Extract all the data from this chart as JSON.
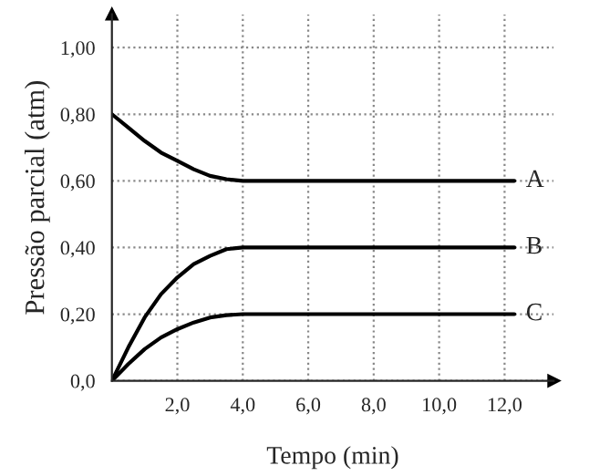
{
  "chart_data": {
    "type": "line",
    "xlabel": "Tempo (min)",
    "ylabel": "Pressão parcial (atm)",
    "xlim": [
      0,
      13.5
    ],
    "ylim": [
      0,
      1.1
    ],
    "xticks": [
      {
        "value": 2,
        "label": "2,0"
      },
      {
        "value": 4,
        "label": "4,0"
      },
      {
        "value": 6,
        "label": "6,0"
      },
      {
        "value": 8,
        "label": "8,0"
      },
      {
        "value": 10,
        "label": "10,0"
      },
      {
        "value": 12,
        "label": "12,0"
      }
    ],
    "yticks": [
      {
        "value": 0,
        "label": "0,0"
      },
      {
        "value": 0.2,
        "label": "0,20"
      },
      {
        "value": 0.4,
        "label": "0,40"
      },
      {
        "value": 0.6,
        "label": "0,60"
      },
      {
        "value": 0.8,
        "label": "0,80"
      },
      {
        "value": 1.0,
        "label": "1,00"
      }
    ],
    "grid": true,
    "marker": "none",
    "line_style": "solid",
    "legend": false,
    "x": [
      0,
      0.5,
      1,
      1.5,
      2,
      2.5,
      3,
      3.5,
      4,
      12.3
    ],
    "series": [
      {
        "name": "A",
        "color": "#000000",
        "values": [
          0.8,
          0.76,
          0.72,
          0.685,
          0.66,
          0.635,
          0.615,
          0.605,
          0.6,
          0.6
        ]
      },
      {
        "name": "B",
        "color": "#000000",
        "values": [
          0,
          0.1,
          0.19,
          0.26,
          0.31,
          0.35,
          0.375,
          0.395,
          0.4,
          0.4
        ]
      },
      {
        "name": "C",
        "color": "#000000",
        "values": [
          0,
          0.05,
          0.095,
          0.13,
          0.155,
          0.175,
          0.19,
          0.197,
          0.2,
          0.2
        ]
      }
    ]
  }
}
